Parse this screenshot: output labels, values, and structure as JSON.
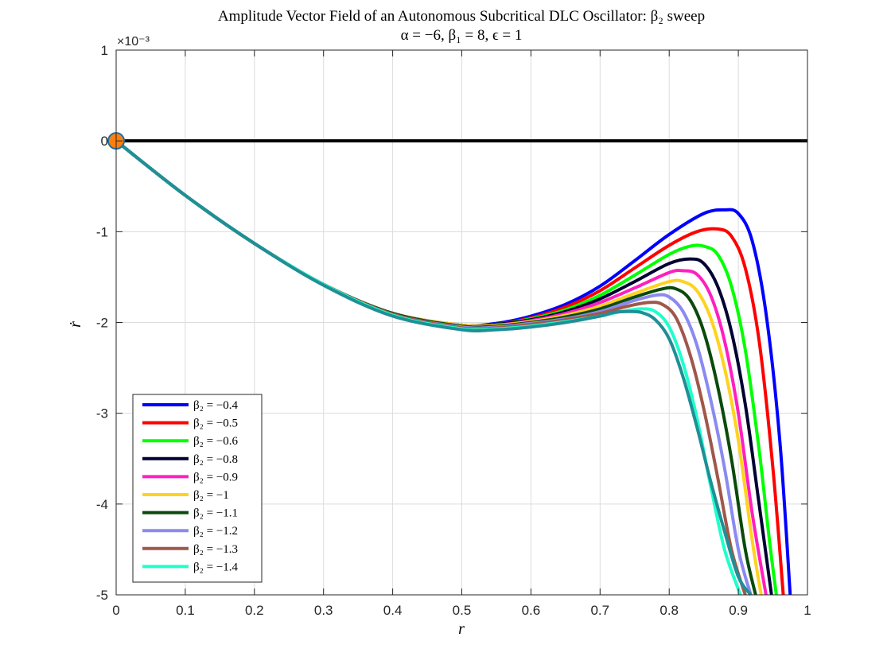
{
  "chart_data": {
    "type": "line",
    "title": "Amplitude Vector Field of an Autonomous Subcritical DLC Oscillator: β₂ sweep",
    "subtitle": "α = −6, β₁ = 8, ϵ = 1",
    "xlabel": "r",
    "ylabel": "ṙ",
    "xlim": [
      0,
      1
    ],
    "ylim": [
      -5,
      1
    ],
    "y_exponent_label": "×10⁻³",
    "x_ticks": [
      0,
      0.1,
      0.2,
      0.3,
      0.4,
      0.5,
      0.6,
      0.7,
      0.8,
      0.9,
      1
    ],
    "x_tick_labels": [
      "0",
      "0.1",
      "0.2",
      "0.3",
      "0.4",
      "0.5",
      "0.6",
      "0.7",
      "0.8",
      "0.9",
      "1"
    ],
    "y_ticks": [
      -5,
      -4,
      -3,
      -2,
      -1,
      0,
      1
    ],
    "y_tick_labels": [
      "-5",
      "-4",
      "-3",
      "-2",
      "-1",
      "0",
      "1"
    ],
    "grid": true,
    "legend_position": "bottom-left",
    "zero_line": {
      "y": 0,
      "color": "#000000"
    },
    "equilibrium_point": {
      "x": 0,
      "y": 0,
      "color": "#ff7f0e"
    },
    "series": [
      {
        "name": "β₂ = −0.4",
        "color": "#0000ff",
        "x": [
          0,
          0.1,
          0.2,
          0.3,
          0.4,
          0.5,
          0.55,
          0.6,
          0.65,
          0.7,
          0.75,
          0.8,
          0.85,
          0.88,
          0.9,
          0.92,
          0.94,
          0.96,
          0.975
        ],
        "y": [
          0,
          -0.6,
          -1.13,
          -1.58,
          -1.9,
          -2.03,
          -2.01,
          -1.93,
          -1.8,
          -1.6,
          -1.32,
          -1.03,
          -0.8,
          -0.76,
          -0.8,
          -1.1,
          -1.9,
          -3.3,
          -5.0
        ]
      },
      {
        "name": "β₂ = −0.5",
        "color": "#ff0000",
        "x": [
          0,
          0.1,
          0.2,
          0.3,
          0.4,
          0.5,
          0.55,
          0.6,
          0.65,
          0.7,
          0.75,
          0.8,
          0.84,
          0.87,
          0.89,
          0.91,
          0.93,
          0.95,
          0.965
        ],
        "y": [
          0,
          -0.6,
          -1.13,
          -1.58,
          -1.9,
          -2.03,
          -2.02,
          -1.95,
          -1.83,
          -1.65,
          -1.4,
          -1.15,
          -1.0,
          -0.97,
          -1.05,
          -1.4,
          -2.2,
          -3.6,
          -5.0
        ]
      },
      {
        "name": "β₂ = −0.6",
        "color": "#00ff00",
        "x": [
          0,
          0.1,
          0.2,
          0.3,
          0.4,
          0.5,
          0.55,
          0.6,
          0.65,
          0.7,
          0.75,
          0.8,
          0.83,
          0.85,
          0.87,
          0.89,
          0.91,
          0.93,
          0.945,
          0.955
        ],
        "y": [
          0,
          -0.6,
          -1.13,
          -1.58,
          -1.9,
          -2.03,
          -2.02,
          -1.96,
          -1.86,
          -1.7,
          -1.48,
          -1.25,
          -1.16,
          -1.16,
          -1.25,
          -1.6,
          -2.3,
          -3.4,
          -4.4,
          -5.0
        ]
      },
      {
        "name": "β₂ = −0.8",
        "color": "#000033",
        "x": [
          0,
          0.1,
          0.2,
          0.3,
          0.4,
          0.5,
          0.55,
          0.6,
          0.65,
          0.7,
          0.75,
          0.8,
          0.83,
          0.85,
          0.87,
          0.89,
          0.91,
          0.93,
          0.948
        ],
        "y": [
          0,
          -0.6,
          -1.13,
          -1.58,
          -1.9,
          -2.03,
          -2.02,
          -1.97,
          -1.88,
          -1.74,
          -1.55,
          -1.35,
          -1.3,
          -1.35,
          -1.6,
          -2.1,
          -2.9,
          -4.0,
          -5.0
        ]
      },
      {
        "name": "β₂ = −0.9",
        "color": "#ff1fbf",
        "x": [
          0,
          0.1,
          0.2,
          0.3,
          0.4,
          0.5,
          0.55,
          0.6,
          0.65,
          0.7,
          0.75,
          0.8,
          0.82,
          0.84,
          0.86,
          0.88,
          0.9,
          0.92,
          0.94
        ],
        "y": [
          0,
          -0.6,
          -1.13,
          -1.58,
          -1.9,
          -2.03,
          -2.03,
          -1.98,
          -1.9,
          -1.78,
          -1.62,
          -1.45,
          -1.43,
          -1.47,
          -1.7,
          -2.2,
          -3.0,
          -4.1,
          -5.0
        ]
      },
      {
        "name": "β₂ = −1",
        "color": "#ffd21f",
        "x": [
          0,
          0.1,
          0.2,
          0.3,
          0.4,
          0.5,
          0.55,
          0.6,
          0.65,
          0.7,
          0.75,
          0.8,
          0.82,
          0.84,
          0.86,
          0.88,
          0.9,
          0.92,
          0.933
        ],
        "y": [
          0,
          -0.6,
          -1.13,
          -1.58,
          -1.9,
          -2.03,
          -2.03,
          -1.99,
          -1.92,
          -1.82,
          -1.68,
          -1.55,
          -1.55,
          -1.65,
          -1.95,
          -2.5,
          -3.3,
          -4.4,
          -5.0
        ]
      },
      {
        "name": "β₂ = −1.1",
        "color": "#0b4a0b",
        "x": [
          0,
          0.1,
          0.2,
          0.3,
          0.4,
          0.5,
          0.55,
          0.6,
          0.65,
          0.7,
          0.75,
          0.79,
          0.81,
          0.83,
          0.85,
          0.87,
          0.89,
          0.91,
          0.925
        ],
        "y": [
          0,
          -0.6,
          -1.13,
          -1.58,
          -1.9,
          -2.04,
          -2.04,
          -2.0,
          -1.94,
          -1.85,
          -1.72,
          -1.63,
          -1.63,
          -1.75,
          -2.1,
          -2.7,
          -3.5,
          -4.5,
          -5.0
        ]
      },
      {
        "name": "β₂ = −1.2",
        "color": "#8a8af0",
        "x": [
          0,
          0.1,
          0.2,
          0.3,
          0.4,
          0.5,
          0.55,
          0.6,
          0.65,
          0.7,
          0.74,
          0.78,
          0.8,
          0.82,
          0.84,
          0.86,
          0.88,
          0.9,
          0.918
        ],
        "y": [
          0,
          -0.6,
          -1.13,
          -1.58,
          -1.91,
          -2.05,
          -2.05,
          -2.01,
          -1.96,
          -1.88,
          -1.78,
          -1.7,
          -1.72,
          -1.88,
          -2.25,
          -2.85,
          -3.6,
          -4.5,
          -5.0
        ]
      },
      {
        "name": "β₂ = −1.3",
        "color": "#a0574a",
        "x": [
          0,
          0.1,
          0.2,
          0.3,
          0.4,
          0.5,
          0.55,
          0.6,
          0.65,
          0.7,
          0.74,
          0.77,
          0.79,
          0.81,
          0.83,
          0.85,
          0.87,
          0.89,
          0.91
        ],
        "y": [
          0,
          -0.6,
          -1.13,
          -1.58,
          -1.91,
          -2.06,
          -2.06,
          -2.02,
          -1.97,
          -1.9,
          -1.82,
          -1.78,
          -1.8,
          -1.95,
          -2.35,
          -2.95,
          -3.7,
          -4.5,
          -5.0
        ]
      },
      {
        "name": "β₂ = −1.4",
        "color": "#1fffcc",
        "x": [
          0,
          0.1,
          0.2,
          0.3,
          0.4,
          0.5,
          0.55,
          0.6,
          0.65,
          0.7,
          0.73,
          0.76,
          0.78,
          0.8,
          0.82,
          0.84,
          0.86,
          0.88,
          0.903
        ],
        "y": [
          0,
          -0.6,
          -1.13,
          -1.58,
          -1.92,
          -2.07,
          -2.07,
          -2.04,
          -1.99,
          -1.93,
          -1.88,
          -1.85,
          -1.88,
          -2.05,
          -2.45,
          -3.05,
          -3.8,
          -4.5,
          -5.0
        ]
      },
      {
        "name": "",
        "color": "#1f8f96",
        "x": [
          0,
          0.1,
          0.2,
          0.3,
          0.4,
          0.5,
          0.55,
          0.6,
          0.65,
          0.7,
          0.72,
          0.74,
          0.76,
          0.78,
          0.8,
          0.82,
          0.84,
          0.86,
          0.88,
          0.9,
          0.918
        ],
        "y": [
          0,
          -0.6,
          -1.13,
          -1.59,
          -1.93,
          -2.08,
          -2.08,
          -2.05,
          -2.0,
          -1.93,
          -1.89,
          -1.88,
          -1.89,
          -1.97,
          -2.18,
          -2.6,
          -3.15,
          -3.75,
          -4.3,
          -4.8,
          -5.0
        ]
      }
    ]
  }
}
